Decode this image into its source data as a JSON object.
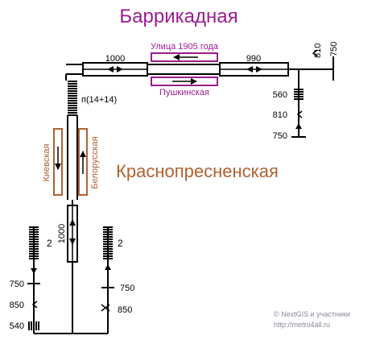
{
  "colors": {
    "line": "#000000",
    "station_a": "#9b1c8e",
    "station_b": "#b0622f",
    "credit": "#8a8a9a"
  },
  "stations": {
    "top": {
      "name": "Баррикадная",
      "track_upper": "Улица 1905 года",
      "track_lower": "Пушкинская"
    },
    "middle": {
      "name": "Краснопресненская",
      "track_left": "Киевская",
      "track_right": "Белорусская"
    }
  },
  "labels": {
    "crossover_top_left": "1000",
    "crossover_top_right": "990",
    "crossover_vertical": "1000",
    "escalator_pair": "п(14+14)",
    "east_810_top": "810",
    "east_750_top": "750",
    "east_560": "560",
    "east_810": "810",
    "east_750": "750",
    "left_stair": "2",
    "right_stair": "2",
    "left_750": "750",
    "left_850": "850",
    "left_540": "540",
    "right_750": "750",
    "right_850": "850"
  },
  "credits": {
    "line1": "© NextGIS и участники",
    "line2": "http://metro4all.ru"
  }
}
